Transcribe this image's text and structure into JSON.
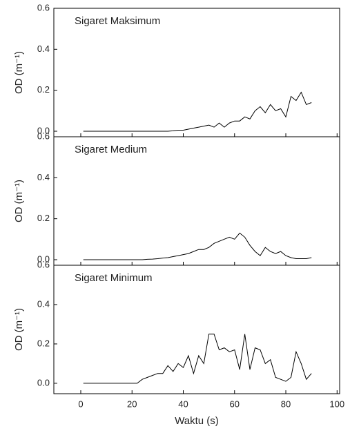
{
  "chart_data": [
    {
      "type": "line",
      "annotation": "Sigaret Maksimum",
      "ylabel": "OD (m⁻¹)",
      "x": [
        1,
        5,
        10,
        15,
        20,
        22,
        24,
        26,
        28,
        30,
        32,
        34,
        36,
        38,
        40,
        42,
        44,
        46,
        48,
        50,
        52,
        54,
        56,
        58,
        60,
        62,
        64,
        66,
        68,
        70,
        72,
        74,
        76,
        78,
        80,
        82,
        84,
        86,
        88,
        90
      ],
      "series": [
        {
          "color": "#000000",
          "values": [
            0,
            0,
            0,
            0,
            0,
            0,
            0,
            0,
            0,
            0,
            0,
            0,
            0.002,
            0.005,
            0.005,
            0.01,
            0.015,
            0.02,
            0.025,
            0.03,
            0.02,
            0.04,
            0.02,
            0.04,
            0.05,
            0.05,
            0.07,
            0.06,
            0.1,
            0.12,
            0.09,
            0.13,
            0.1,
            0.11,
            0.07,
            0.17,
            0.15,
            0.19,
            0.13,
            0.14
          ]
        }
      ],
      "xlim": [
        -10.5,
        101
      ],
      "xticks": [
        0,
        20,
        40,
        60,
        80,
        100
      ],
      "ylim": [
        -0.027,
        0.6
      ],
      "yticks": [
        {
          "value": 0,
          "label": "0.0"
        },
        {
          "value": 0.2,
          "label": "0.2"
        },
        {
          "value": 0.4,
          "label": "0.4"
        },
        {
          "value": 0.6,
          "label": "0.6"
        }
      ]
    },
    {
      "type": "line",
      "annotation": "Sigaret Medium",
      "ylabel": "OD (m⁻¹)",
      "x": [
        1,
        5,
        10,
        15,
        20,
        22,
        24,
        26,
        28,
        30,
        32,
        34,
        36,
        38,
        40,
        42,
        44,
        46,
        48,
        50,
        52,
        54,
        56,
        58,
        60,
        62,
        64,
        66,
        68,
        70,
        72,
        74,
        76,
        78,
        80,
        82,
        84,
        86,
        88,
        90
      ],
      "series": [
        {
          "color": "#000000",
          "values": [
            0,
            0,
            0,
            0,
            0,
            0,
            0,
            0.002,
            0.003,
            0.005,
            0.008,
            0.01,
            0.015,
            0.02,
            0.025,
            0.03,
            0.04,
            0.05,
            0.05,
            0.06,
            0.08,
            0.09,
            0.1,
            0.11,
            0.1,
            0.13,
            0.11,
            0.07,
            0.04,
            0.02,
            0.06,
            0.04,
            0.03,
            0.04,
            0.02,
            0.01,
            0.005,
            0.005,
            0.005,
            0.01
          ]
        }
      ],
      "xlim": [
        -10.5,
        101
      ],
      "xticks": [
        0,
        20,
        40,
        60,
        80,
        100
      ],
      "ylim": [
        -0.027,
        0.6
      ],
      "yticks": [
        {
          "value": 0,
          "label": "0.0"
        },
        {
          "value": 0.2,
          "label": "0.2"
        },
        {
          "value": 0.4,
          "label": "0.4"
        },
        {
          "value": 0.6,
          "label": "0.6"
        }
      ]
    },
    {
      "type": "line",
      "annotation": "Sigaret Minimum",
      "ylabel": "OD (m⁻¹)",
      "xlabel": "Waktu (s)",
      "x": [
        1,
        5,
        10,
        15,
        20,
        22,
        24,
        26,
        28,
        30,
        32,
        34,
        36,
        38,
        40,
        42,
        44,
        46,
        48,
        50,
        52,
        54,
        56,
        58,
        60,
        62,
        64,
        66,
        68,
        70,
        72,
        74,
        76,
        78,
        80,
        82,
        84,
        86,
        88,
        90
      ],
      "series": [
        {
          "color": "#000000",
          "values": [
            0,
            0,
            0,
            0,
            0,
            0,
            0.02,
            0.03,
            0.04,
            0.05,
            0.05,
            0.09,
            0.06,
            0.1,
            0.08,
            0.14,
            0.05,
            0.14,
            0.1,
            0.25,
            0.25,
            0.17,
            0.18,
            0.16,
            0.17,
            0.07,
            0.25,
            0.07,
            0.18,
            0.17,
            0.1,
            0.12,
            0.03,
            0.02,
            0.01,
            0.03,
            0.16,
            0.1,
            0.02,
            0.05
          ]
        }
      ],
      "xlim": [
        -10.5,
        101
      ],
      "xticks": [
        0,
        20,
        40,
        60,
        80,
        100
      ],
      "ylim": [
        -0.053,
        0.6
      ],
      "yticks": [
        {
          "value": 0,
          "label": "0.0"
        },
        {
          "value": 0.2,
          "label": "0.2"
        },
        {
          "value": 0.4,
          "label": "0.4"
        },
        {
          "value": 0.6,
          "label": "0.6"
        }
      ]
    }
  ]
}
